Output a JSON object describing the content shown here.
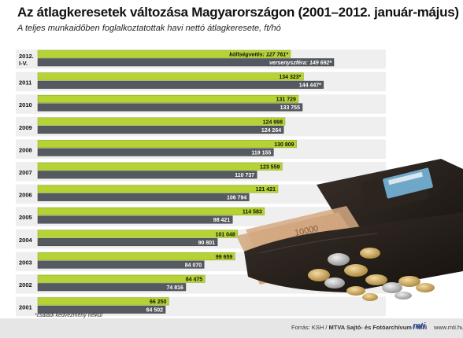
{
  "title": "Az átlagkeresetek változása Magyarországon (2001–2012. január-május)",
  "subtitle": "A teljes munkaidőben foglalkoztatottak havi nettó átlagkeresete, ft/hó",
  "footnote": "*családi kedvezmény nélkül",
  "source": {
    "prefix": "Forrás: KSH / ",
    "agency": "MTVA Sajtó- és Fotóarchívum / MTI",
    "logo": "mti",
    "url": "www.mti.hu"
  },
  "colors": {
    "green_bar": "#b5d334",
    "dark_bar": "#555a60",
    "row_band": "#efefef"
  },
  "chart_data": {
    "type": "bar",
    "orientation": "horizontal",
    "categories": [
      "2012. I-V.",
      "2011",
      "2010",
      "2009",
      "2008",
      "2007",
      "2006",
      "2005",
      "2004",
      "2003",
      "2002",
      "2001"
    ],
    "series": [
      {
        "values": [
          127761,
          134323,
          131729,
          124998,
          130809,
          123559,
          121421,
          114583,
          101048,
          99659,
          84475,
          66250
        ],
        "labels": [
          "költségvetés: 127 761*",
          "134 323*",
          "131 729",
          "124 998",
          "130 809",
          "123 559",
          "121 421",
          "114 583",
          "101 048",
          "99 659",
          "84 475",
          "66 250"
        ]
      },
      {
        "values": [
          149692,
          144447,
          133755,
          124264,
          119155,
          110737,
          106794,
          98421,
          90801,
          84070,
          74816,
          64502
        ],
        "labels": [
          "versenyszféra: 149 692*",
          "144 447*",
          "133 755",
          "124 264",
          "119 155",
          "110 737",
          "106 794",
          "98 421",
          "90 801",
          "84 070",
          "74 816",
          "64 502"
        ]
      }
    ],
    "xlim": [
      0,
      168000
    ],
    "grid": false,
    "legend": "none"
  }
}
